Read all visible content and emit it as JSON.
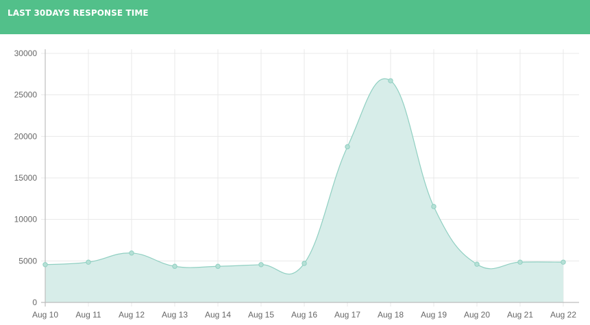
{
  "header": {
    "title": "LAST 30DAYS RESPONSE TIME"
  },
  "colors": {
    "header_bg": "#52c08a",
    "area_fill": "#d7ede9",
    "line": "#8fcfc1",
    "point": "#b6e0d6",
    "grid": "#e8e8e8",
    "axis": "#bdbdbd",
    "tick_text": "#666666"
  },
  "chart_data": {
    "type": "area",
    "categories": [
      "Aug 10",
      "Aug 11",
      "Aug 12",
      "Aug 13",
      "Aug 14",
      "Aug 15",
      "Aug 16",
      "Aug 17",
      "Aug 18",
      "Aug 19",
      "Aug 20",
      "Aug 21",
      "Aug 22"
    ],
    "series": [
      {
        "values": [
          4550,
          4850,
          5950,
          4350,
          4350,
          4550,
          4700,
          18750,
          26700,
          11550,
          4600,
          4850,
          4850
        ]
      }
    ],
    "ylim": [
      0,
      30000
    ],
    "yticks": [
      0,
      5000,
      10000,
      15000,
      20000,
      25000,
      30000
    ],
    "ytick_labels": [
      "0",
      "5000",
      "10000",
      "15000",
      "20000",
      "25000",
      "30000"
    ],
    "title": "",
    "xlabel": "",
    "ylabel": "",
    "grid": true,
    "smooth": true
  }
}
